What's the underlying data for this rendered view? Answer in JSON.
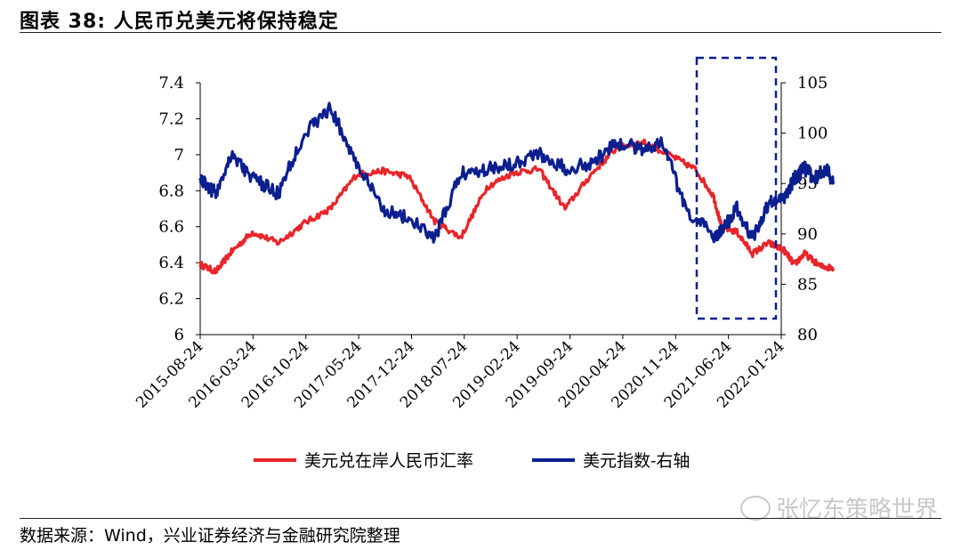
{
  "header": {
    "title": "图表 38:  人民币兑美元将保持稳定"
  },
  "footer": {
    "source": "数据来源：Wind，兴业证券经济与金融研究院整理"
  },
  "watermark": {
    "text": "张忆东策略世界"
  },
  "colors": {
    "cny": "#e8252a",
    "dxy": "#0b1f8f",
    "axis": "#000000",
    "highlight": "#0b1f8f"
  },
  "chart_data": {
    "type": "line",
    "title": "人民币兑美元将保持稳定",
    "categories": [
      "2015-08-24",
      "2016-03-24",
      "2016-10-24",
      "2017-05-24",
      "2017-12-24",
      "2018-07-24",
      "2019-02-24",
      "2019-09-24",
      "2020-04-24",
      "2020-11-24",
      "2021-06-24",
      "2022-01-24"
    ],
    "left_axis": {
      "ylim": [
        6,
        7.4
      ],
      "ticks": [
        "6",
        "6.2",
        "6.4",
        "6.6",
        "6.8",
        "7",
        "7.2",
        "7.4"
      ]
    },
    "right_axis": {
      "ylim": [
        80,
        105
      ],
      "ticks": [
        "80",
        "85",
        "90",
        "95",
        "100",
        "105"
      ]
    },
    "series": [
      {
        "name": "美元兑在岸人民币汇率",
        "axis": "left",
        "x": [
          0,
          0.3,
          0.6,
          1.0,
          1.5,
          2.0,
          2.5,
          3.0,
          3.5,
          4.0,
          4.5,
          5.0,
          5.5,
          6.0,
          6.5,
          7.0,
          7.5,
          8.0,
          8.5,
          9.0,
          9.5,
          9.85,
          10.0,
          10.3,
          10.6,
          10.9,
          11.2,
          11.4,
          11.6,
          11.9,
          12.15
        ],
        "values": [
          6.39,
          6.35,
          6.46,
          6.57,
          6.51,
          6.62,
          6.7,
          6.89,
          6.91,
          6.88,
          6.63,
          6.54,
          6.82,
          6.9,
          6.92,
          6.7,
          6.89,
          7.04,
          7.07,
          7.0,
          6.92,
          6.77,
          6.6,
          6.57,
          6.45,
          6.51,
          6.47,
          6.39,
          6.45,
          6.38,
          6.37
        ]
      },
      {
        "name": "美元指数-右轴",
        "axis": "right",
        "x": [
          0,
          0.3,
          0.6,
          1.0,
          1.5,
          2.0,
          2.5,
          3.0,
          3.5,
          4.0,
          4.5,
          5.0,
          5.5,
          6.0,
          6.5,
          7.0,
          7.5,
          8.0,
          8.5,
          8.9,
          9.3,
          9.85,
          10.0,
          10.3,
          10.6,
          10.9,
          11.2,
          11.4,
          11.6,
          11.8,
          12.0,
          12.15
        ],
        "values": [
          95.5,
          94.0,
          98.0,
          95.5,
          94.0,
          100.0,
          102.5,
          97.0,
          92.5,
          91.5,
          89.5,
          96.0,
          96.5,
          97.0,
          98.0,
          96.5,
          97.0,
          99.0,
          98.5,
          99.0,
          92.5,
          89.8,
          90.2,
          92.5,
          89.5,
          93.0,
          93.5,
          95.5,
          96.5,
          95.5,
          96.5,
          95.2
        ]
      }
    ],
    "legend_position": "bottom-center",
    "annotation": "dashed box highlighting 2021-01 to 2022-01"
  }
}
